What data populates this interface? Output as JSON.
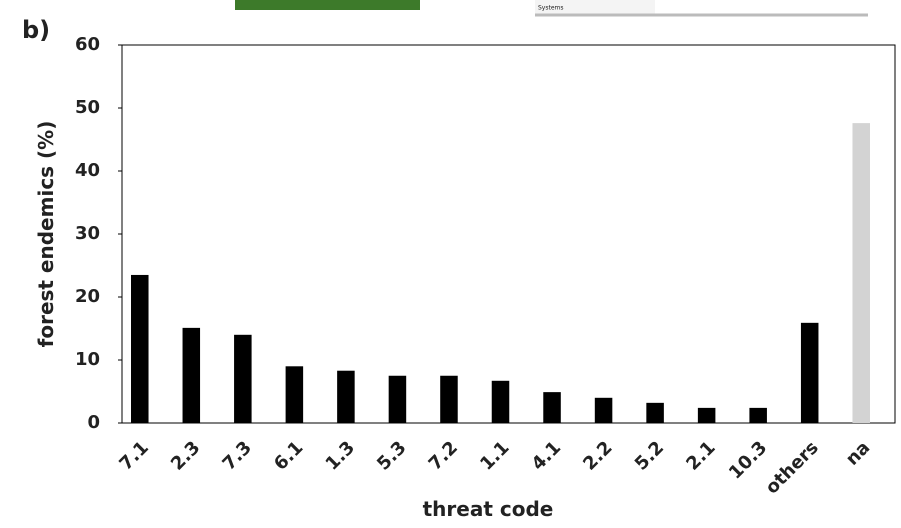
{
  "page": {
    "cropped_text": "Systems"
  },
  "chart_data": {
    "type": "bar",
    "panel_label": "b)",
    "x_label": "threat code",
    "y_label": "forest endemics (%)",
    "categories": [
      "7.1",
      "2.3",
      "7.3",
      "6.1",
      "1.3",
      "5.3",
      "7.2",
      "1.1",
      "4.1",
      "2.2",
      "5.2",
      "2.1",
      "10.3",
      "others",
      "na"
    ],
    "values": [
      23.5,
      15.1,
      14.0,
      9.0,
      8.3,
      7.5,
      7.5,
      6.7,
      4.9,
      4.0,
      3.2,
      2.4,
      2.4,
      15.9,
      47.6
    ],
    "colors": [
      "#000000",
      "#000000",
      "#000000",
      "#000000",
      "#000000",
      "#000000",
      "#000000",
      "#000000",
      "#000000",
      "#000000",
      "#000000",
      "#000000",
      "#000000",
      "#000000",
      "#d3d3d3"
    ],
    "ylim": [
      0,
      60
    ],
    "yticks": [
      0,
      10,
      20,
      30,
      40,
      50,
      60
    ],
    "grid": false
  }
}
